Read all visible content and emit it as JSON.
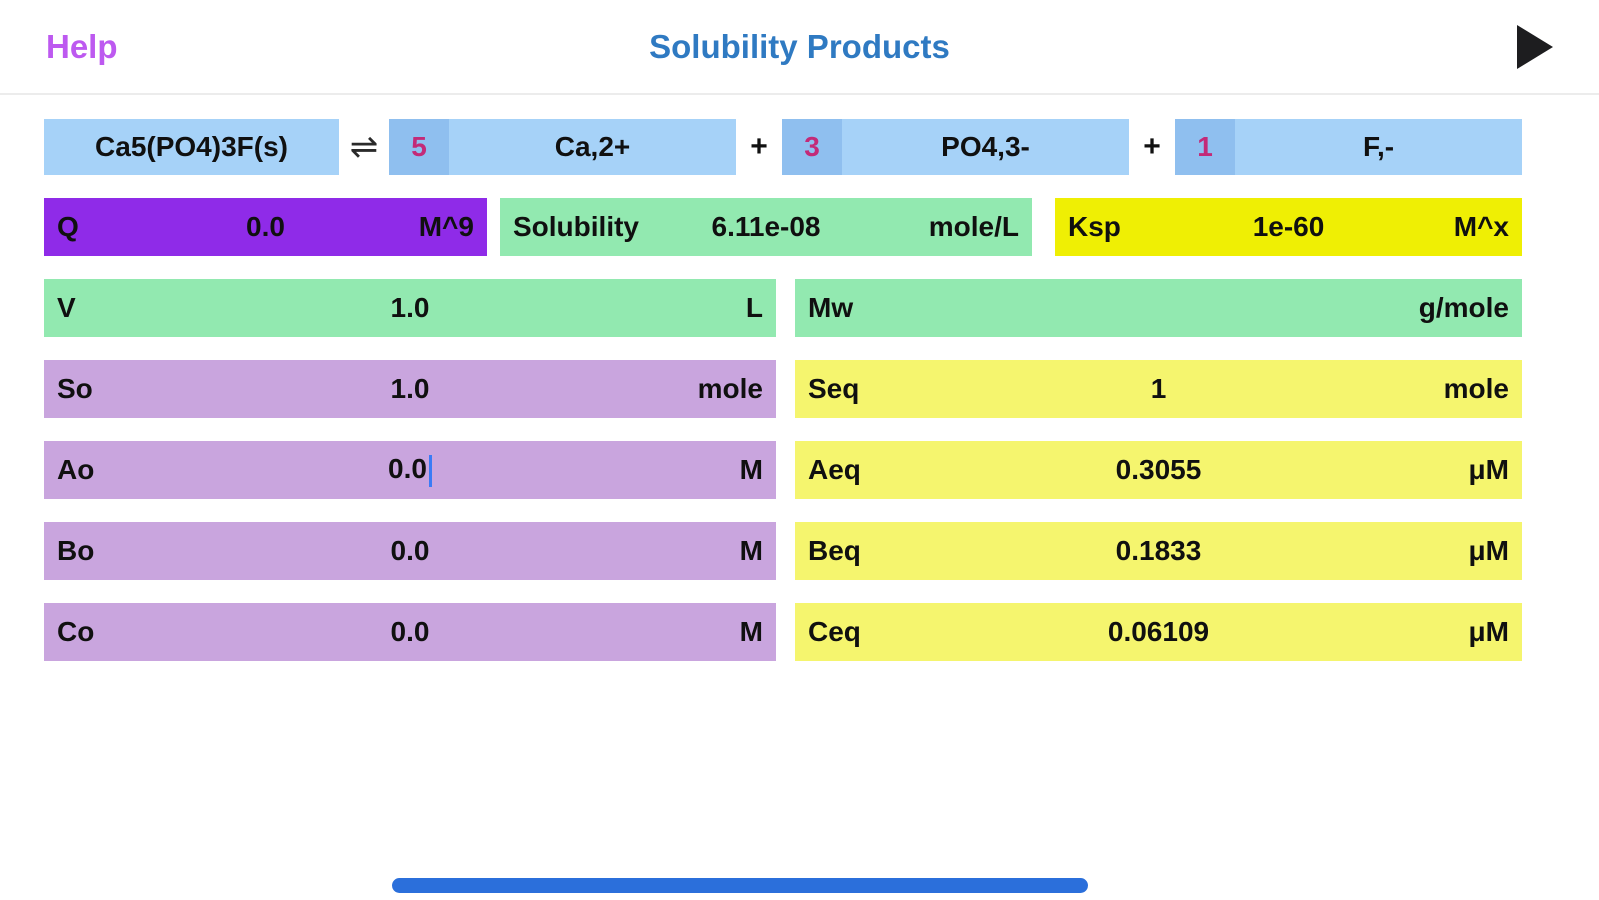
{
  "nav": {
    "help_label": "Help",
    "title": "Solubility Products"
  },
  "equation": {
    "solid": "Ca5(PO4)3F(s)",
    "arrow": "⇌",
    "plus": "+",
    "terms": [
      {
        "coef": "5",
        "species": "Ca,2+"
      },
      {
        "coef": "3",
        "species": "PO4,3-"
      },
      {
        "coef": "1",
        "species": "F,-"
      }
    ]
  },
  "fields": {
    "q": {
      "label": "Q",
      "value": "0.0",
      "unit": "M^9"
    },
    "solubility": {
      "label": "Solubility",
      "value": "6.11e-08",
      "unit": "mole/L"
    },
    "ksp": {
      "label": "Ksp",
      "value": "1e-60",
      "unit": "M^x"
    },
    "v": {
      "label": "V",
      "value": "1.0",
      "unit": "L"
    },
    "mw": {
      "label": "Mw",
      "value": "",
      "unit": "g/mole"
    },
    "so": {
      "label": "So",
      "value": "1.0",
      "unit": "mole"
    },
    "seq": {
      "label": "Seq",
      "value": "1",
      "unit": "mole"
    },
    "ao": {
      "label": "Ao",
      "value": "0.0",
      "unit": "M"
    },
    "aeq": {
      "label": "Aeq",
      "value": "0.3055",
      "unit": "μM"
    },
    "bo": {
      "label": "Bo",
      "value": "0.0",
      "unit": "M"
    },
    "beq": {
      "label": "Beq",
      "value": "0.1833",
      "unit": "μM"
    },
    "co": {
      "label": "Co",
      "value": "0.0",
      "unit": "M"
    },
    "ceq": {
      "label": "Ceq",
      "value": "0.06109",
      "unit": "μM"
    }
  },
  "colors": {
    "help_purple": "#bd59f0",
    "title_blue": "#2f7ac2",
    "species_blue": "#a6d2f8",
    "coef_blue": "#8fbfef",
    "coef_text": "#c32a78",
    "q_purple": "#8f2be8",
    "green": "#92e9b0",
    "ksp_yellow": "#efef04",
    "eq_yellow": "#f5f56e",
    "lavender": "#c9a5de",
    "cursor_blue": "#3a7bf6",
    "home_bar_blue": "#2b6fdb"
  }
}
